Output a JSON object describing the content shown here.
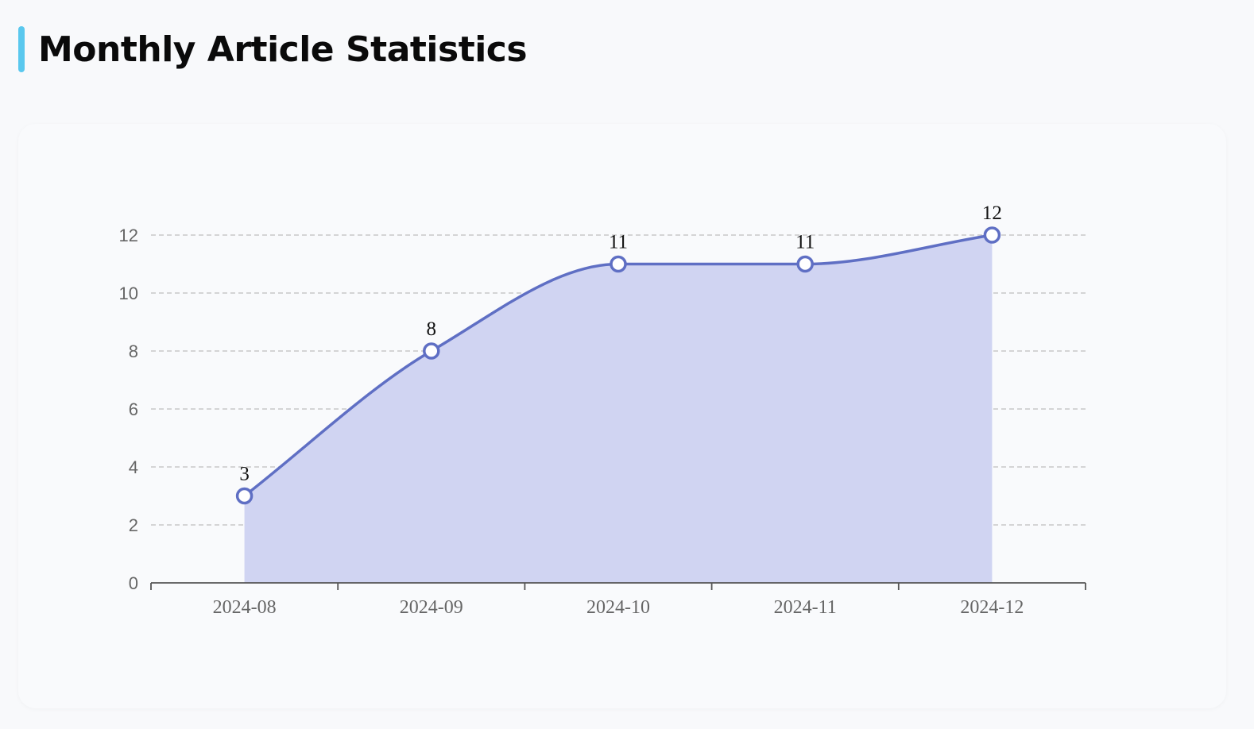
{
  "header": {
    "title": "Monthly Article Statistics"
  },
  "chart_data": {
    "type": "area",
    "title": "",
    "xlabel": "",
    "ylabel": "",
    "categories": [
      "2024-08",
      "2024-09",
      "2024-10",
      "2024-11",
      "2024-12"
    ],
    "values": [
      3,
      8,
      11,
      11,
      12
    ],
    "ylim": [
      0,
      12
    ],
    "y_ticks": [
      0,
      2,
      4,
      6,
      8,
      10,
      12
    ],
    "grid": true,
    "smooth": true,
    "data_labels": true,
    "colors": {
      "accent": "#5ac8ee",
      "line": "#5f6fc4",
      "area": "#d0d4f2",
      "marker_fill": "#ffffff"
    }
  }
}
